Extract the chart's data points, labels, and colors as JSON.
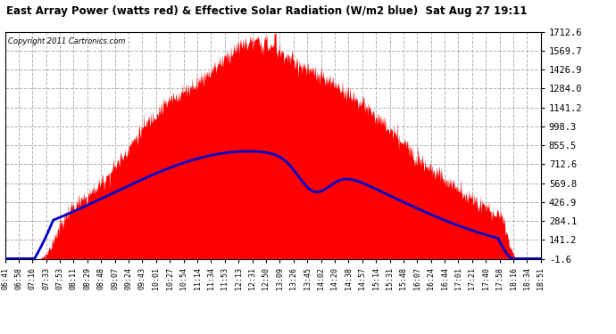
{
  "title": "East Array Power (watts red) & Effective Solar Radiation (W/m2 blue)  Sat Aug 27 19:11",
  "copyright": "Copyright 2011 Cartronics.com",
  "background_color": "#ffffff",
  "plot_bg_color": "#ffffff",
  "grid_color": "#aaaaaa",
  "yticks": [
    -1.6,
    141.2,
    284.1,
    426.9,
    569.8,
    712.6,
    855.5,
    998.3,
    1141.2,
    1284.0,
    1426.9,
    1569.7,
    1712.6
  ],
  "ymin": -1.6,
  "ymax": 1712.6,
  "red_color": "#ff0000",
  "blue_color": "#0000cc",
  "xtick_labels": [
    "06:41",
    "06:58",
    "07:16",
    "07:33",
    "07:53",
    "08:11",
    "08:29",
    "08:48",
    "09:07",
    "09:24",
    "09:43",
    "10:01",
    "10:27",
    "10:54",
    "11:14",
    "11:34",
    "11:53",
    "12:13",
    "12:31",
    "12:50",
    "13:09",
    "13:26",
    "13:45",
    "14:02",
    "14:20",
    "14:38",
    "14:57",
    "15:14",
    "15:31",
    "15:48",
    "16:07",
    "16:24",
    "16:44",
    "17:01",
    "17:21",
    "17:40",
    "17:58",
    "18:16",
    "18:34",
    "18:51"
  ]
}
